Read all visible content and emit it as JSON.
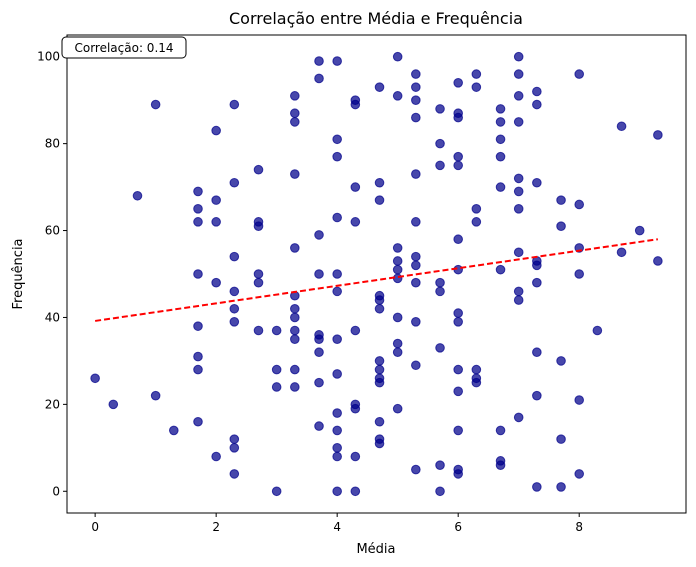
{
  "chart_data": {
    "type": "scatter",
    "title": "Correlação entre Média e Frequência",
    "xlabel": "Média",
    "ylabel": "Frequência",
    "xlim": [
      -0.465,
      9.765
    ],
    "ylim": [
      -5,
      105
    ],
    "xticks": [
      0,
      2,
      4,
      6,
      8
    ],
    "yticks": [
      0,
      20,
      40,
      60,
      80,
      100
    ],
    "grid": false,
    "annotation": "Correlação: 0.14",
    "colors": {
      "points": "#00008b",
      "trend": "#ff0000"
    },
    "trendline": {
      "x": [
        0,
        9.3
      ],
      "y": [
        39.2,
        58.0
      ]
    },
    "points": [
      [
        0,
        26
      ],
      [
        0.3,
        20
      ],
      [
        0.7,
        68
      ],
      [
        1,
        89
      ],
      [
        1,
        22
      ],
      [
        1.3,
        14
      ],
      [
        1.7,
        69
      ],
      [
        1.7,
        65
      ],
      [
        1.7,
        62
      ],
      [
        1.7,
        50
      ],
      [
        1.7,
        38
      ],
      [
        1.7,
        31
      ],
      [
        1.7,
        28
      ],
      [
        1.7,
        16
      ],
      [
        2,
        83
      ],
      [
        2,
        67
      ],
      [
        2,
        62
      ],
      [
        2,
        48
      ],
      [
        2,
        8
      ],
      [
        2.3,
        89
      ],
      [
        2.3,
        71
      ],
      [
        2.3,
        54
      ],
      [
        2.3,
        46
      ],
      [
        2.3,
        42
      ],
      [
        2.3,
        39
      ],
      [
        2.3,
        12
      ],
      [
        2.3,
        10
      ],
      [
        2.3,
        4
      ],
      [
        2.7,
        74
      ],
      [
        2.7,
        62
      ],
      [
        2.7,
        61
      ],
      [
        2.7,
        50
      ],
      [
        2.7,
        48
      ],
      [
        2.7,
        37
      ],
      [
        3,
        37
      ],
      [
        3,
        28
      ],
      [
        3,
        24
      ],
      [
        3,
        0
      ],
      [
        3.3,
        91
      ],
      [
        3.3,
        87
      ],
      [
        3.3,
        85
      ],
      [
        3.3,
        73
      ],
      [
        3.3,
        56
      ],
      [
        3.3,
        45
      ],
      [
        3.3,
        42
      ],
      [
        3.3,
        40
      ],
      [
        3.3,
        37
      ],
      [
        3.3,
        35
      ],
      [
        3.3,
        28
      ],
      [
        3.3,
        24
      ],
      [
        3.7,
        99
      ],
      [
        3.7,
        95
      ],
      [
        3.7,
        59
      ],
      [
        3.7,
        50
      ],
      [
        3.7,
        36
      ],
      [
        3.7,
        35
      ],
      [
        3.7,
        32
      ],
      [
        3.7,
        25
      ],
      [
        3.7,
        15
      ],
      [
        4,
        99
      ],
      [
        4,
        81
      ],
      [
        4,
        77
      ],
      [
        4,
        63
      ],
      [
        4,
        50
      ],
      [
        4,
        46
      ],
      [
        4,
        35
      ],
      [
        4,
        27
      ],
      [
        4,
        18
      ],
      [
        4,
        14
      ],
      [
        4,
        10
      ],
      [
        4,
        8
      ],
      [
        4,
        0
      ],
      [
        4.3,
        90
      ],
      [
        4.3,
        89
      ],
      [
        4.3,
        70
      ],
      [
        4.3,
        62
      ],
      [
        4.3,
        37
      ],
      [
        4.3,
        20
      ],
      [
        4.3,
        19
      ],
      [
        4.3,
        8
      ],
      [
        4.3,
        0
      ],
      [
        4.7,
        93
      ],
      [
        4.7,
        71
      ],
      [
        4.7,
        67
      ],
      [
        4.7,
        45
      ],
      [
        4.7,
        44
      ],
      [
        4.7,
        42
      ],
      [
        4.7,
        30
      ],
      [
        4.7,
        28
      ],
      [
        4.7,
        26
      ],
      [
        4.7,
        25
      ],
      [
        4.7,
        16
      ],
      [
        4.7,
        12
      ],
      [
        4.7,
        11
      ],
      [
        5,
        100
      ],
      [
        5,
        91
      ],
      [
        5,
        56
      ],
      [
        5,
        53
      ],
      [
        5,
        51
      ],
      [
        5,
        49
      ],
      [
        5,
        40
      ],
      [
        5,
        34
      ],
      [
        5,
        32
      ],
      [
        5,
        19
      ],
      [
        5.3,
        96
      ],
      [
        5.3,
        93
      ],
      [
        5.3,
        90
      ],
      [
        5.3,
        86
      ],
      [
        5.3,
        73
      ],
      [
        5.3,
        62
      ],
      [
        5.3,
        54
      ],
      [
        5.3,
        52
      ],
      [
        5.3,
        48
      ],
      [
        5.3,
        39
      ],
      [
        5.3,
        29
      ],
      [
        5.3,
        5
      ],
      [
        5.7,
        88
      ],
      [
        5.7,
        80
      ],
      [
        5.7,
        75
      ],
      [
        5.7,
        48
      ],
      [
        5.7,
        46
      ],
      [
        5.7,
        33
      ],
      [
        5.7,
        6
      ],
      [
        5.7,
        0
      ],
      [
        6,
        94
      ],
      [
        6,
        87
      ],
      [
        6,
        86
      ],
      [
        6,
        77
      ],
      [
        6,
        75
      ],
      [
        6,
        58
      ],
      [
        6,
        51
      ],
      [
        6,
        41
      ],
      [
        6,
        39
      ],
      [
        6,
        28
      ],
      [
        6,
        23
      ],
      [
        6,
        14
      ],
      [
        6,
        5
      ],
      [
        6,
        4
      ],
      [
        6.3,
        96
      ],
      [
        6.3,
        93
      ],
      [
        6.3,
        65
      ],
      [
        6.3,
        62
      ],
      [
        6.3,
        28
      ],
      [
        6.3,
        26
      ],
      [
        6.3,
        25
      ],
      [
        6.7,
        88
      ],
      [
        6.7,
        85
      ],
      [
        6.7,
        81
      ],
      [
        6.7,
        77
      ],
      [
        6.7,
        70
      ],
      [
        6.7,
        51
      ],
      [
        6.7,
        14
      ],
      [
        6.7,
        7
      ],
      [
        6.7,
        6
      ],
      [
        7,
        100
      ],
      [
        7,
        96
      ],
      [
        7,
        91
      ],
      [
        7,
        85
      ],
      [
        7,
        72
      ],
      [
        7,
        69
      ],
      [
        7,
        65
      ],
      [
        7,
        55
      ],
      [
        7,
        46
      ],
      [
        7,
        44
      ],
      [
        7,
        17
      ],
      [
        7.3,
        92
      ],
      [
        7.3,
        89
      ],
      [
        7.3,
        71
      ],
      [
        7.3,
        53
      ],
      [
        7.3,
        52
      ],
      [
        7.3,
        48
      ],
      [
        7.3,
        32
      ],
      [
        7.3,
        22
      ],
      [
        7.3,
        1
      ],
      [
        7.7,
        67
      ],
      [
        7.7,
        61
      ],
      [
        7.7,
        30
      ],
      [
        7.7,
        12
      ],
      [
        7.7,
        1
      ],
      [
        8,
        96
      ],
      [
        8,
        66
      ],
      [
        8,
        56
      ],
      [
        8,
        50
      ],
      [
        8,
        21
      ],
      [
        8,
        4
      ],
      [
        8.3,
        37
      ],
      [
        8.7,
        84
      ],
      [
        8.7,
        55
      ],
      [
        9,
        60
      ],
      [
        9.3,
        82
      ],
      [
        9.3,
        53
      ]
    ]
  }
}
